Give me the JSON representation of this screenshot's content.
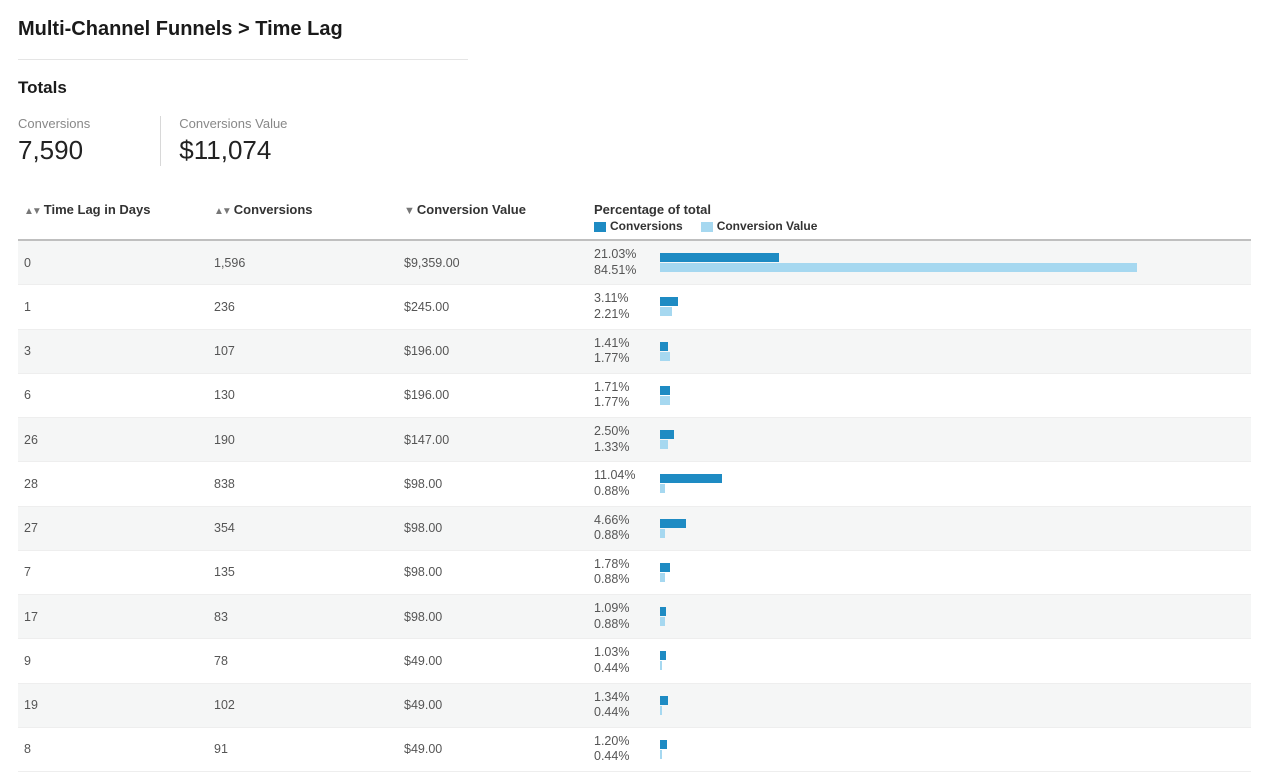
{
  "page_title": "Multi-Channel Funnels > Time Lag",
  "totals_section_title": "Totals",
  "totals": {
    "conversions_label": "Conversions",
    "conversions_value": "7,590",
    "value_label": "Conversions Value",
    "value_value": "$11,074"
  },
  "columns": {
    "time_lag": "Time Lag in Days",
    "conversions": "Conversions",
    "conversion_value": "Conversion Value",
    "pct_header": "Percentage of total",
    "legend_conv": "Conversions",
    "legend_val": "Conversion Value"
  },
  "colors": {
    "bar_conv": "#1e8bc3",
    "bar_val": "#a6d8f0",
    "header_rule": "#bfbfbf",
    "row_alt": "#f5f6f6"
  },
  "bar_max_pct": 100,
  "rows": [
    {
      "lag": "0",
      "conv": "1,596",
      "val": "$9,359.00",
      "pct_conv": "21.03%",
      "pct_val": "84.51%",
      "w_conv": 21.03,
      "w_val": 84.51
    },
    {
      "lag": "1",
      "conv": "236",
      "val": "$245.00",
      "pct_conv": "3.11%",
      "pct_val": "2.21%",
      "w_conv": 3.11,
      "w_val": 2.21
    },
    {
      "lag": "3",
      "conv": "107",
      "val": "$196.00",
      "pct_conv": "1.41%",
      "pct_val": "1.77%",
      "w_conv": 1.41,
      "w_val": 1.77
    },
    {
      "lag": "6",
      "conv": "130",
      "val": "$196.00",
      "pct_conv": "1.71%",
      "pct_val": "1.77%",
      "w_conv": 1.71,
      "w_val": 1.77
    },
    {
      "lag": "26",
      "conv": "190",
      "val": "$147.00",
      "pct_conv": "2.50%",
      "pct_val": "1.33%",
      "w_conv": 2.5,
      "w_val": 1.33
    },
    {
      "lag": "28",
      "conv": "838",
      "val": "$98.00",
      "pct_conv": "11.04%",
      "pct_val": "0.88%",
      "w_conv": 11.04,
      "w_val": 0.88
    },
    {
      "lag": "27",
      "conv": "354",
      "val": "$98.00",
      "pct_conv": "4.66%",
      "pct_val": "0.88%",
      "w_conv": 4.66,
      "w_val": 0.88
    },
    {
      "lag": "7",
      "conv": "135",
      "val": "$98.00",
      "pct_conv": "1.78%",
      "pct_val": "0.88%",
      "w_conv": 1.78,
      "w_val": 0.88
    },
    {
      "lag": "17",
      "conv": "83",
      "val": "$98.00",
      "pct_conv": "1.09%",
      "pct_val": "0.88%",
      "w_conv": 1.09,
      "w_val": 0.88
    },
    {
      "lag": "9",
      "conv": "78",
      "val": "$49.00",
      "pct_conv": "1.03%",
      "pct_val": "0.44%",
      "w_conv": 1.03,
      "w_val": 0.44
    },
    {
      "lag": "19",
      "conv": "102",
      "val": "$49.00",
      "pct_conv": "1.34%",
      "pct_val": "0.44%",
      "w_conv": 1.34,
      "w_val": 0.44
    },
    {
      "lag": "8",
      "conv": "91",
      "val": "$49.00",
      "pct_conv": "1.20%",
      "pct_val": "0.44%",
      "w_conv": 1.2,
      "w_val": 0.44
    }
  ]
}
